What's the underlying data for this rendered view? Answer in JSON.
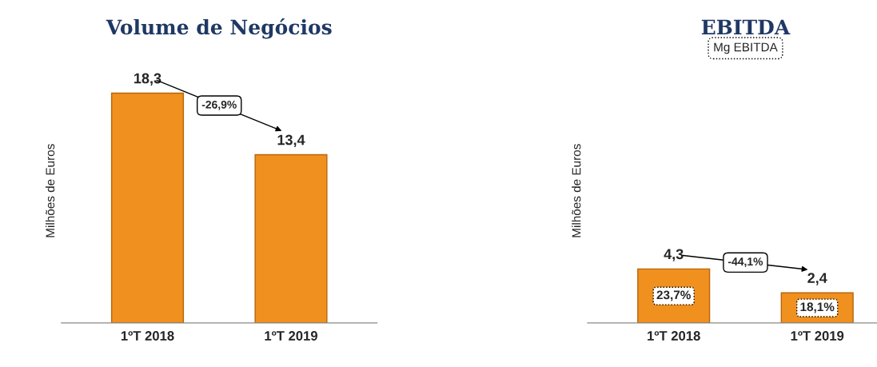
{
  "chart_data": [
    {
      "type": "bar",
      "title": "Volume de Negócios",
      "ylabel": "Milhões de Euros",
      "categories": [
        "1ºT 2018",
        "1ºT 2019"
      ],
      "values": [
        18.3,
        13.4
      ],
      "value_labels": [
        "18,3",
        "13,4"
      ],
      "color": "#f0901e",
      "tick_labels": "x",
      "grid": false,
      "legend": false,
      "annotations": [
        "-26,9%"
      ]
    },
    {
      "type": "bar",
      "title": "EBITDA",
      "ylabel": "Milhões de Euros",
      "categories": [
        "1ºT 2018",
        "1ºT 2019"
      ],
      "values": [
        4.3,
        2.4
      ],
      "value_labels": [
        "4,3",
        "2,4"
      ],
      "color": "#f0901e",
      "tick_labels": "x",
      "grid": false,
      "legend": false,
      "annotations": [
        "Mg EBITDA",
        "-44,1%",
        "23,7%",
        "18,1%"
      ]
    }
  ]
}
